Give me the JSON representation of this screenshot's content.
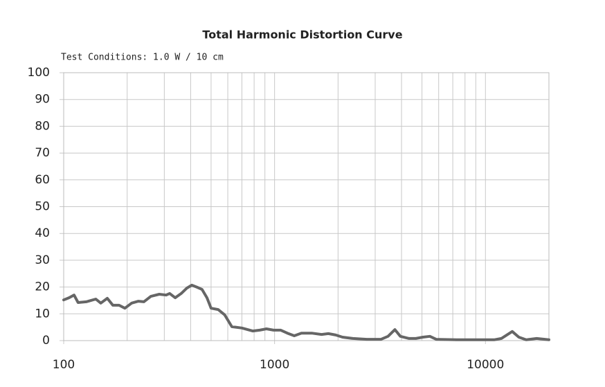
{
  "chart_data": {
    "type": "line",
    "title": "Total Harmonic Distortion Curve",
    "subtitle": "Test Conditions: 1.0 W / 10 cm",
    "x": [
      100,
      106,
      112,
      117,
      128,
      142,
      150,
      161,
      171,
      183,
      195,
      210,
      226,
      240,
      259,
      284,
      306,
      318,
      338,
      361,
      384,
      405,
      430,
      453,
      478,
      500,
      540,
      580,
      627,
      700,
      787,
      850,
      915,
      990,
      1070,
      1150,
      1240,
      1340,
      1500,
      1670,
      1800,
      1950,
      2100,
      2350,
      2740,
      3200,
      3450,
      3720,
      3950,
      4340,
      4680,
      5050,
      5450,
      5840,
      7300,
      9500,
      11000,
      11900,
      13400,
      14400,
      15600,
      17500,
      20000
    ],
    "series": [
      {
        "color": "#666666",
        "values": [
          15.2,
          16,
          17,
          14.2,
          14.5,
          15.5,
          14,
          15.8,
          13.2,
          13.2,
          12.1,
          14,
          14.7,
          14.5,
          16.5,
          17.3,
          17,
          17.6,
          16,
          17.6,
          19.6,
          20.7,
          19.9,
          19.1,
          16,
          12.1,
          11.6,
          9.6,
          5.2,
          4.7,
          3.6,
          3.9,
          4.4,
          3.9,
          3.9,
          2.8,
          1.8,
          2.8,
          2.8,
          2.3,
          2.6,
          2.1,
          1.3,
          0.8,
          0.5,
          0.5,
          1.6,
          4.1,
          1.6,
          0.8,
          0.8,
          1.3,
          1.6,
          0.5,
          0.3,
          0.3,
          0.3,
          0.8,
          3.4,
          1.3,
          0.3,
          0.8,
          0.3
        ]
      }
    ],
    "xscale": "log",
    "xlim": [
      100,
      20000
    ],
    "xticks": [
      100,
      1000,
      10000
    ],
    "x_minor_grid": [
      200,
      300,
      400,
      500,
      600,
      700,
      800,
      900,
      2000,
      3000,
      4000,
      5000,
      6000,
      7000,
      8000,
      9000
    ],
    "ylim": [
      0,
      100
    ],
    "yticks": [
      0,
      10,
      20,
      30,
      40,
      50,
      60,
      70,
      80,
      90,
      100
    ],
    "grid": true
  }
}
